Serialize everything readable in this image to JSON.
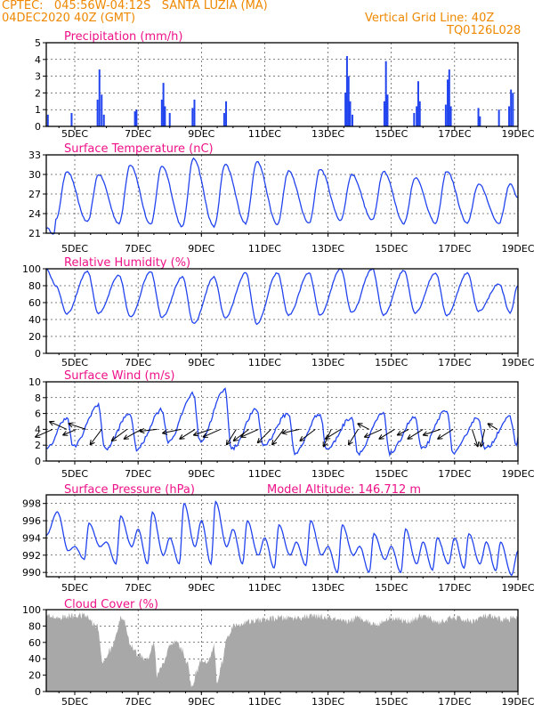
{
  "header": {
    "line1_left": "CPTEC:   045:56W-04:12S   SANTA LUZIA (MA)",
    "line2_left": "04DEC2020 40Z (GMT)",
    "line1_right": "Vertical Grid Line: 40Z",
    "line2_right": "TQ0126L028"
  },
  "colors": {
    "header": "#ee8800",
    "title": "#ee1188",
    "series": "#2244ee",
    "cloud": "#a8a8a8",
    "wind_arrow": "#000000"
  },
  "x_axis": {
    "days": [
      5,
      7,
      9,
      11,
      13,
      15,
      17,
      19
    ],
    "labels": [
      "5DEC",
      "7DEC",
      "9DEC",
      "11DEC",
      "13DEC",
      "15DEC",
      "17DEC",
      "19DEC"
    ],
    "start_day": 4.1,
    "end_day": 19.0
  },
  "chart_data": [
    {
      "type": "bar",
      "id": "precip",
      "title": "Precipitation (mm/h)",
      "ylim": [
        0,
        5
      ],
      "yticks": [
        0,
        1,
        2,
        3,
        4,
        5
      ],
      "grid": "dashed-horizontal",
      "events": [
        {
          "day": 4.15,
          "value": 0.7
        },
        {
          "day": 4.9,
          "value": 0.8
        },
        {
          "day": 5.72,
          "value": 1.6
        },
        {
          "day": 5.78,
          "value": 3.4
        },
        {
          "day": 5.85,
          "value": 1.9
        },
        {
          "day": 5.92,
          "value": 0.7
        },
        {
          "day": 6.9,
          "value": 0.9
        },
        {
          "day": 6.95,
          "value": 1.0
        },
        {
          "day": 7.75,
          "value": 1.6
        },
        {
          "day": 7.8,
          "value": 2.6
        },
        {
          "day": 7.85,
          "value": 1.2
        },
        {
          "day": 8.0,
          "value": 0.8
        },
        {
          "day": 8.72,
          "value": 1.1
        },
        {
          "day": 8.78,
          "value": 1.6
        },
        {
          "day": 9.72,
          "value": 0.8
        },
        {
          "day": 9.78,
          "value": 1.5
        },
        {
          "day": 13.55,
          "value": 2.0
        },
        {
          "day": 13.6,
          "value": 4.2
        },
        {
          "day": 13.65,
          "value": 3.0
        },
        {
          "day": 13.7,
          "value": 1.5
        },
        {
          "day": 13.77,
          "value": 0.7
        },
        {
          "day": 14.78,
          "value": 1.5
        },
        {
          "day": 14.83,
          "value": 3.9
        },
        {
          "day": 14.88,
          "value": 1.9
        },
        {
          "day": 15.72,
          "value": 0.8
        },
        {
          "day": 15.8,
          "value": 1.2
        },
        {
          "day": 15.85,
          "value": 2.7
        },
        {
          "day": 15.9,
          "value": 1.5
        },
        {
          "day": 16.72,
          "value": 1.3
        },
        {
          "day": 16.78,
          "value": 2.8
        },
        {
          "day": 16.83,
          "value": 3.4
        },
        {
          "day": 16.88,
          "value": 1.2
        },
        {
          "day": 17.75,
          "value": 1.1
        },
        {
          "day": 17.8,
          "value": 0.6
        },
        {
          "day": 18.4,
          "value": 1.0
        },
        {
          "day": 18.72,
          "value": 1.2
        },
        {
          "day": 18.78,
          "value": 2.2
        },
        {
          "day": 18.84,
          "value": 2.0
        }
      ]
    },
    {
      "type": "line",
      "id": "temp",
      "title": "Surface Temperature (nC)",
      "ylim": [
        21,
        33
      ],
      "yticks": [
        21,
        24,
        27,
        30,
        33
      ],
      "grid": "dashed-horizontal",
      "y_start": 21.8,
      "start_dip": 20.9,
      "daily": [
        {
          "day": 5,
          "max": 30.5,
          "min": 23.0
        },
        {
          "day": 6,
          "max": 30.0,
          "min": 22.7
        },
        {
          "day": 7,
          "max": 31.5,
          "min": 22.5
        },
        {
          "day": 8,
          "max": 31.3,
          "min": 22.3
        },
        {
          "day": 9,
          "max": 32.5,
          "min": 22.0
        },
        {
          "day": 10,
          "max": 31.5,
          "min": 22.0
        },
        {
          "day": 11,
          "max": 32.0,
          "min": 22.5
        },
        {
          "day": 12,
          "max": 30.5,
          "min": 22.3
        },
        {
          "day": 13,
          "max": 30.8,
          "min": 22.5
        },
        {
          "day": 14,
          "max": 30.0,
          "min": 23.0
        },
        {
          "day": 15,
          "max": 30.5,
          "min": 23.0
        },
        {
          "day": 16,
          "max": 29.5,
          "min": 22.5
        },
        {
          "day": 17,
          "max": 30.5,
          "min": 22.5
        },
        {
          "day": 18,
          "max": 28.5,
          "min": 22.5
        },
        {
          "day": 19,
          "max": 28.5,
          "min": 22.5
        }
      ],
      "y_end": 26.5
    },
    {
      "type": "line",
      "id": "rh",
      "title": "Relative Humidity (%)",
      "ylim": [
        0,
        100
      ],
      "yticks": [
        0,
        20,
        40,
        60,
        80,
        100
      ],
      "grid": "dashed-horizontal",
      "y_start": 100,
      "daily": [
        {
          "day": 5,
          "min": 47,
          "max": 80
        },
        {
          "day": 6,
          "min": 47,
          "max": 97
        },
        {
          "day": 7,
          "min": 43,
          "max": 92
        },
        {
          "day": 8,
          "min": 43,
          "max": 97
        },
        {
          "day": 9,
          "min": 35,
          "max": 90
        },
        {
          "day": 10,
          "min": 42,
          "max": 90
        },
        {
          "day": 11,
          "min": 35,
          "max": 95
        },
        {
          "day": 12,
          "min": 45,
          "max": 95
        },
        {
          "day": 13,
          "min": 45,
          "max": 95
        },
        {
          "day": 14,
          "min": 48,
          "max": 100
        },
        {
          "day": 15,
          "min": 45,
          "max": 100
        },
        {
          "day": 16,
          "min": 48,
          "max": 98
        },
        {
          "day": 17,
          "min": 45,
          "max": 95
        },
        {
          "day": 18,
          "min": 50,
          "max": 95
        },
        {
          "day": 19,
          "min": 48,
          "max": 82
        }
      ],
      "y_end": 80
    },
    {
      "type": "line",
      "id": "wind",
      "title": "Surface Wind (m/s)",
      "ylim": [
        0,
        10
      ],
      "yticks": [
        0,
        2,
        4,
        6,
        8,
        10
      ],
      "grid": "dashed-horizontal",
      "y_start": 1.5,
      "daily": [
        {
          "day": 5,
          "min": 1.8,
          "max": 5.5
        },
        {
          "day": 6,
          "min": 1.5,
          "max": 7.0
        },
        {
          "day": 7,
          "min": 1.5,
          "max": 6.0
        },
        {
          "day": 8,
          "min": 2.5,
          "max": 6.5
        },
        {
          "day": 9,
          "min": 2.5,
          "max": 8.5
        },
        {
          "day": 10,
          "min": 1.5,
          "max": 9.0
        },
        {
          "day": 11,
          "min": 2.0,
          "max": 6.5
        },
        {
          "day": 12,
          "min": 1.0,
          "max": 6.0
        },
        {
          "day": 13,
          "min": 1.5,
          "max": 6.0
        },
        {
          "day": 14,
          "min": 1.0,
          "max": 5.5
        },
        {
          "day": 15,
          "min": 1.0,
          "max": 6.0
        },
        {
          "day": 16,
          "min": 1.5,
          "max": 5.5
        },
        {
          "day": 17,
          "min": 1.0,
          "max": 6.5
        },
        {
          "day": 18,
          "min": 1.5,
          "max": 5.5
        },
        {
          "day": 19,
          "min": 2.0,
          "max": 5.5
        }
      ],
      "y_end": 3.0,
      "vectors": [
        {
          "day": 4.3,
          "u": -0.9,
          "v": -0.4
        },
        {
          "day": 4.75,
          "u": -0.9,
          "v": 0.4
        },
        {
          "day": 5.05,
          "u": -0.7,
          "v": -0.3
        },
        {
          "day": 5.35,
          "u": -0.9,
          "v": 0.3
        },
        {
          "day": 5.85,
          "u": -0.6,
          "v": -0.8
        },
        {
          "day": 6.65,
          "u": -0.8,
          "v": -0.6
        },
        {
          "day": 7.1,
          "u": -0.9,
          "v": -0.5
        },
        {
          "day": 7.6,
          "u": -0.9,
          "v": -0.1
        },
        {
          "day": 8.35,
          "u": -0.95,
          "v": -0.2
        },
        {
          "day": 8.8,
          "u": -0.8,
          "v": -0.5
        },
        {
          "day": 9.3,
          "u": -0.9,
          "v": -0.3
        },
        {
          "day": 9.6,
          "u": -0.9,
          "v": -0.4
        },
        {
          "day": 10.1,
          "u": -0.5,
          "v": -0.8
        },
        {
          "day": 10.5,
          "u": -0.8,
          "v": -0.6
        },
        {
          "day": 10.8,
          "u": -0.9,
          "v": -0.4
        },
        {
          "day": 11.2,
          "u": -0.7,
          "v": -0.7
        },
        {
          "day": 11.6,
          "u": -0.6,
          "v": -0.8
        },
        {
          "day": 12.1,
          "u": -0.9,
          "v": -0.2
        },
        {
          "day": 12.6,
          "u": -0.8,
          "v": -0.6
        },
        {
          "day": 13.1,
          "u": -0.4,
          "v": -0.9
        },
        {
          "day": 13.4,
          "u": -0.8,
          "v": -0.5
        },
        {
          "day": 13.95,
          "u": -0.5,
          "v": -0.8
        },
        {
          "day": 14.3,
          "u": -0.6,
          "v": 0.3
        },
        {
          "day": 14.7,
          "u": -0.9,
          "v": -0.4
        },
        {
          "day": 15.1,
          "u": -0.8,
          "v": -0.5
        },
        {
          "day": 15.55,
          "u": -0.6,
          "v": -0.3
        },
        {
          "day": 16.0,
          "u": -0.8,
          "v": -0.5
        },
        {
          "day": 16.55,
          "u": -0.9,
          "v": -0.3
        },
        {
          "day": 16.95,
          "u": -0.8,
          "v": -0.5
        },
        {
          "day": 17.55,
          "u": 0.3,
          "v": -0.9
        },
        {
          "day": 17.95,
          "u": -0.2,
          "v": -0.9
        },
        {
          "day": 18.35,
          "u": -0.5,
          "v": 0.3
        }
      ]
    },
    {
      "type": "line",
      "id": "pres",
      "title": "Surface Pressure (hPa)",
      "subtitle": "Model Altitude: 146.712 m",
      "ylim": [
        989.5,
        999
      ],
      "yticks": [
        990,
        992,
        994,
        996,
        998
      ],
      "grid": "dashed-horizontal",
      "y_start": 994.3,
      "semi_diurnal": [
        {
          "day": 4.45,
          "value": 997.0
        },
        {
          "day": 4.8,
          "value": 992.5
        },
        {
          "day": 5.0,
          "value": 993.0
        },
        {
          "day": 5.3,
          "value": 991.5
        },
        {
          "day": 5.45,
          "value": 995.7
        },
        {
          "day": 5.8,
          "value": 993.0
        },
        {
          "day": 6.0,
          "value": 993.5
        },
        {
          "day": 6.3,
          "value": 991.0
        },
        {
          "day": 6.45,
          "value": 996.5
        },
        {
          "day": 6.8,
          "value": 993.0
        },
        {
          "day": 7.0,
          "value": 995.0
        },
        {
          "day": 7.3,
          "value": 991.0
        },
        {
          "day": 7.45,
          "value": 997.0
        },
        {
          "day": 7.8,
          "value": 992.0
        },
        {
          "day": 8.0,
          "value": 994.0
        },
        {
          "day": 8.3,
          "value": 991.0
        },
        {
          "day": 8.45,
          "value": 998.0
        },
        {
          "day": 8.8,
          "value": 993.0
        },
        {
          "day": 9.0,
          "value": 996.0
        },
        {
          "day": 9.3,
          "value": 991.0
        },
        {
          "day": 9.45,
          "value": 998.2
        },
        {
          "day": 9.8,
          "value": 993.0
        },
        {
          "day": 10.0,
          "value": 995.0
        },
        {
          "day": 10.3,
          "value": 991.0
        },
        {
          "day": 10.45,
          "value": 996.0
        },
        {
          "day": 10.8,
          "value": 992.0
        },
        {
          "day": 11.0,
          "value": 994.0
        },
        {
          "day": 11.3,
          "value": 990.5
        },
        {
          "day": 11.45,
          "value": 995.5
        },
        {
          "day": 11.8,
          "value": 992.0
        },
        {
          "day": 12.0,
          "value": 993.5
        },
        {
          "day": 12.3,
          "value": 990.8
        },
        {
          "day": 12.45,
          "value": 996.0
        },
        {
          "day": 12.8,
          "value": 992.0
        },
        {
          "day": 13.0,
          "value": 993.0
        },
        {
          "day": 13.3,
          "value": 990.0
        },
        {
          "day": 13.45,
          "value": 995.5
        },
        {
          "day": 13.8,
          "value": 992.0
        },
        {
          "day": 14.0,
          "value": 993.0
        },
        {
          "day": 14.3,
          "value": 990.0
        },
        {
          "day": 14.45,
          "value": 994.5
        },
        {
          "day": 14.8,
          "value": 991.5
        },
        {
          "day": 15.0,
          "value": 993.0
        },
        {
          "day": 15.3,
          "value": 990.0
        },
        {
          "day": 15.45,
          "value": 995.0
        },
        {
          "day": 15.8,
          "value": 991.0
        },
        {
          "day": 16.0,
          "value": 993.5
        },
        {
          "day": 16.3,
          "value": 990.3
        },
        {
          "day": 16.45,
          "value": 994.0
        },
        {
          "day": 16.8,
          "value": 991.0
        },
        {
          "day": 17.0,
          "value": 994.0
        },
        {
          "day": 17.3,
          "value": 990.5
        },
        {
          "day": 17.45,
          "value": 994.5
        },
        {
          "day": 17.8,
          "value": 991.0
        },
        {
          "day": 18.0,
          "value": 993.5
        },
        {
          "day": 18.3,
          "value": 990.2
        },
        {
          "day": 18.45,
          "value": 993.5
        },
        {
          "day": 18.8,
          "value": 989.7
        }
      ],
      "y_end": 992.5
    },
    {
      "type": "area",
      "id": "cloud",
      "title": "Cloud Cover (%)",
      "ylim": [
        0,
        100
      ],
      "yticks": [
        0,
        20,
        40,
        60,
        80,
        100
      ],
      "grid": "dashed-horizontal",
      "profile": [
        {
          "day": 4.1,
          "value": 93
        },
        {
          "day": 4.5,
          "value": 90
        },
        {
          "day": 4.9,
          "value": 92
        },
        {
          "day": 5.3,
          "value": 93
        },
        {
          "day": 5.7,
          "value": 80
        },
        {
          "day": 5.9,
          "value": 35
        },
        {
          "day": 6.1,
          "value": 50
        },
        {
          "day": 6.5,
          "value": 90
        },
        {
          "day": 6.8,
          "value": 55
        },
        {
          "day": 7.0,
          "value": 45
        },
        {
          "day": 7.3,
          "value": 40
        },
        {
          "day": 7.5,
          "value": 60
        },
        {
          "day": 7.6,
          "value": 20
        },
        {
          "day": 7.8,
          "value": 35
        },
        {
          "day": 8.0,
          "value": 55
        },
        {
          "day": 8.2,
          "value": 60
        },
        {
          "day": 8.4,
          "value": 50
        },
        {
          "day": 8.55,
          "value": 35
        },
        {
          "day": 8.7,
          "value": 5
        },
        {
          "day": 8.85,
          "value": 25
        },
        {
          "day": 9.0,
          "value": 40
        },
        {
          "day": 9.2,
          "value": 35
        },
        {
          "day": 9.4,
          "value": 55
        },
        {
          "day": 9.5,
          "value": 10
        },
        {
          "day": 9.65,
          "value": 35
        },
        {
          "day": 9.8,
          "value": 65
        },
        {
          "day": 10.0,
          "value": 80
        },
        {
          "day": 10.5,
          "value": 85
        },
        {
          "day": 11.0,
          "value": 88
        },
        {
          "day": 11.5,
          "value": 90
        },
        {
          "day": 12.0,
          "value": 90
        },
        {
          "day": 12.5,
          "value": 92
        },
        {
          "day": 13.0,
          "value": 90
        },
        {
          "day": 13.5,
          "value": 85
        },
        {
          "day": 14.0,
          "value": 90
        },
        {
          "day": 14.5,
          "value": 82
        },
        {
          "day": 15.0,
          "value": 90
        },
        {
          "day": 15.5,
          "value": 86
        },
        {
          "day": 16.0,
          "value": 92
        },
        {
          "day": 16.5,
          "value": 85
        },
        {
          "day": 17.0,
          "value": 90
        },
        {
          "day": 17.5,
          "value": 86
        },
        {
          "day": 18.0,
          "value": 92
        },
        {
          "day": 18.5,
          "value": 88
        },
        {
          "day": 19.0,
          "value": 90
        }
      ],
      "noise": 8
    }
  ]
}
